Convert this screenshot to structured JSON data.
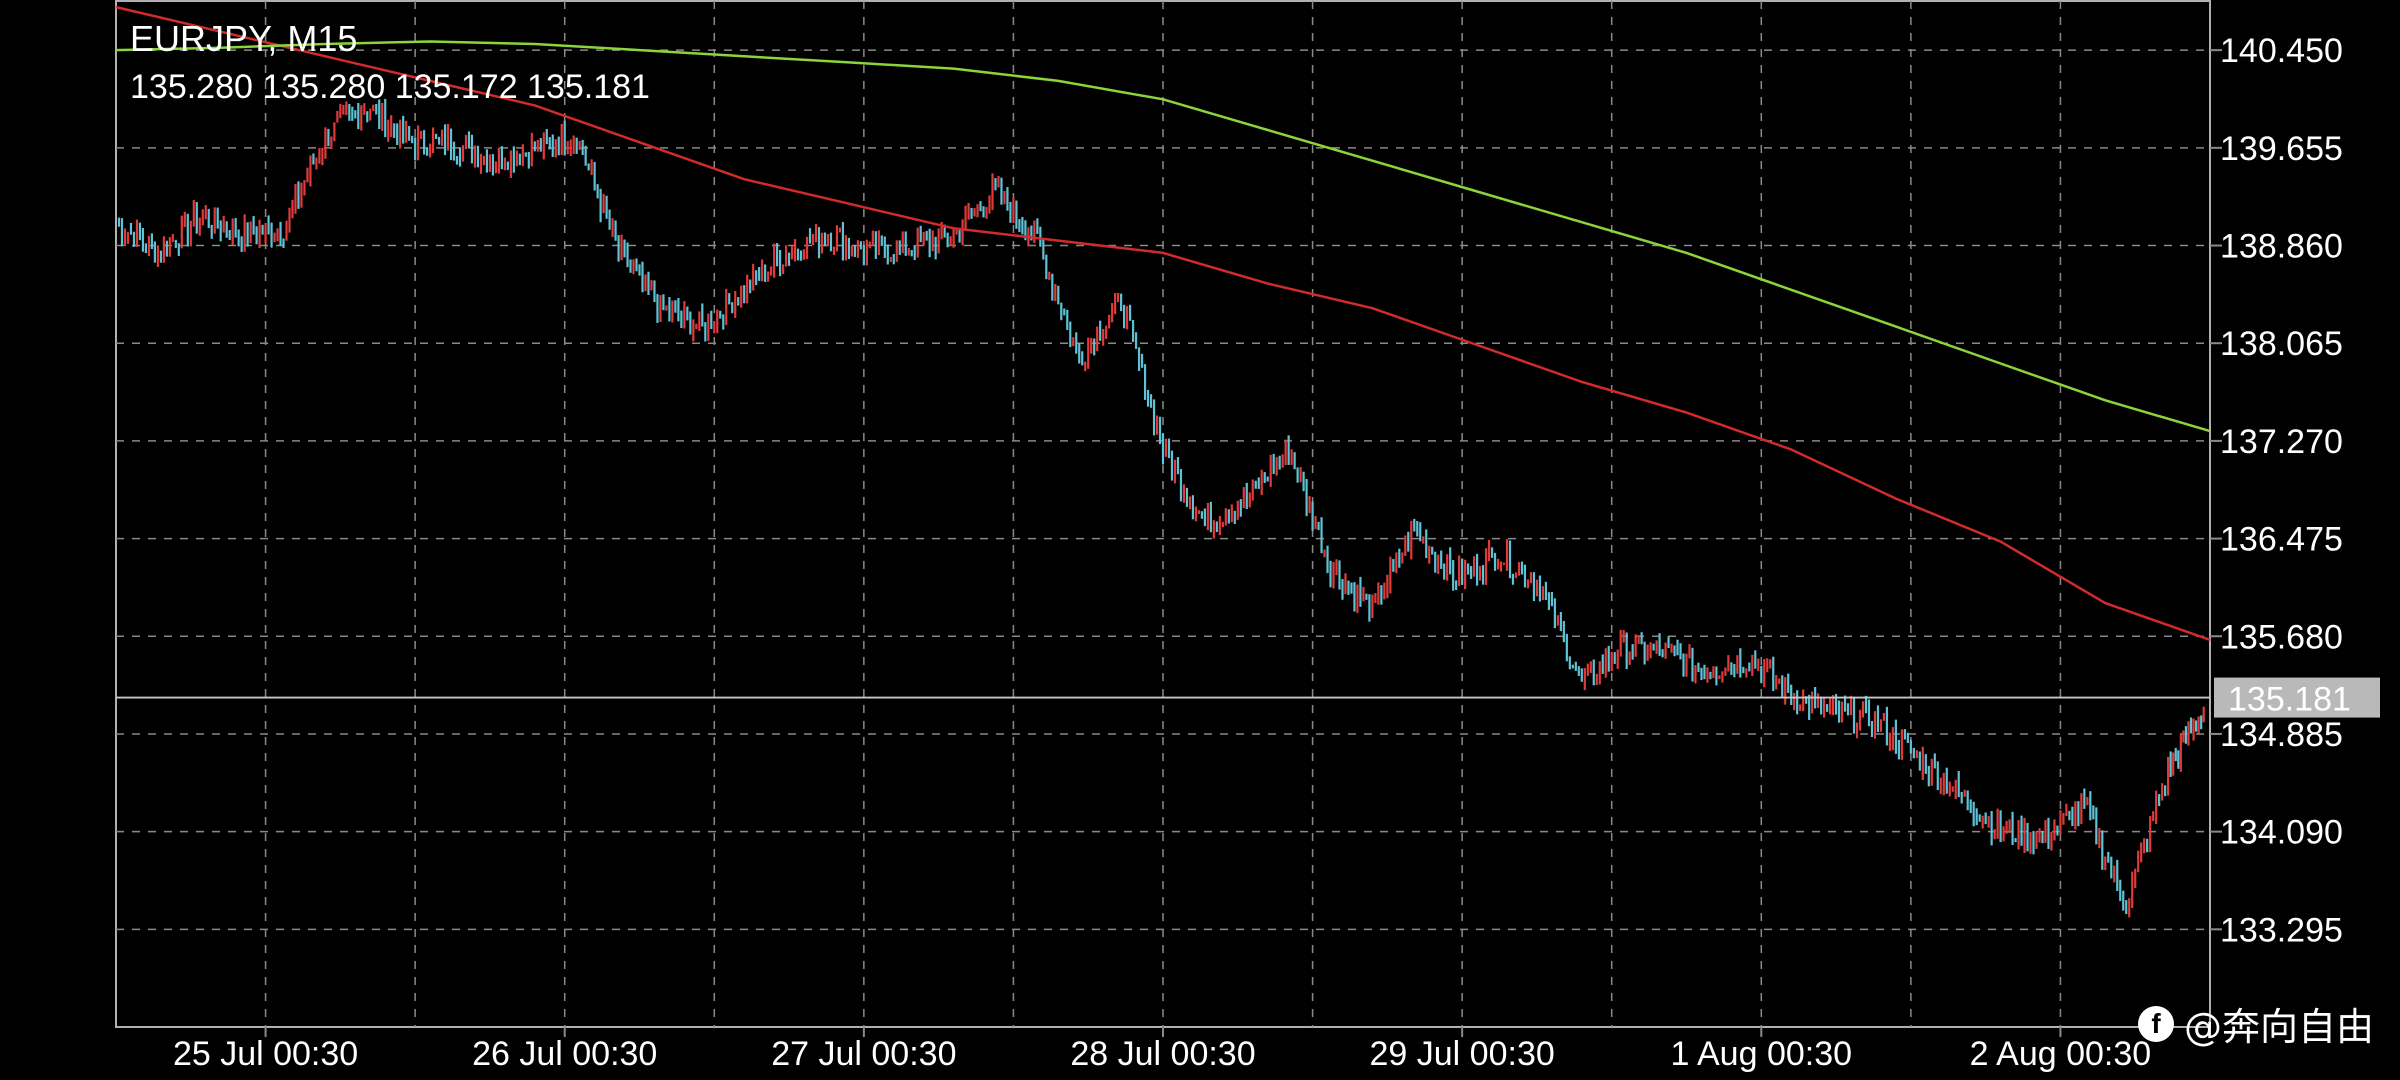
{
  "header": {
    "symbol": "EURJPY, M15",
    "ohlc": "135.280 135.280 135.172 135.181"
  },
  "watermark": {
    "icon": "facebook-icon",
    "text": "@奔向自由"
  },
  "colors": {
    "background": "#000000",
    "grid": "#8a8a8a",
    "candle_up": "#e03a3a",
    "candle_down": "#5ec3d6",
    "ma_fast": "#d22b2b",
    "ma_slow": "#8bd43a",
    "price_line": "#c8c8c8",
    "price_tag_bg": "#b9b9b9"
  },
  "chart_data": {
    "type": "line",
    "title": "EURJPY, M15",
    "x_tick_labels": [
      "25 Jul 00:30",
      "26 Jul 00:30",
      "27 Jul 00:30",
      "28 Jul 00:30",
      "29 Jul 00:30",
      "1 Aug 00:30",
      "2 Aug 00:30"
    ],
    "y_tick_labels": [
      "140.450",
      "139.655",
      "138.860",
      "138.065",
      "137.270",
      "136.475",
      "135.680",
      "134.885",
      "134.090",
      "133.295"
    ],
    "ylim": [
      132.5,
      140.85
    ],
    "current_price": 135.181,
    "current_price_label": "135.181",
    "grid": true,
    "x_index_range": [
      0,
      100
    ],
    "series": [
      {
        "kind": "price",
        "x": [
          0,
          2,
          4,
          6,
          8,
          10,
          12,
          14,
          16,
          18,
          20,
          22,
          24,
          26,
          28,
          30,
          32,
          34,
          36,
          38,
          40,
          42,
          44,
          46,
          48,
          50,
          52,
          54,
          56,
          58,
          60,
          62,
          64,
          66,
          68,
          70,
          72,
          74,
          76,
          78,
          80,
          82,
          84,
          86,
          88,
          90,
          92,
          94,
          96,
          98,
          99.7
        ],
        "values": [
          139.05,
          138.8,
          139.1,
          138.95,
          139.0,
          139.75,
          140.0,
          139.7,
          139.7,
          139.55,
          139.65,
          139.75,
          138.8,
          138.35,
          138.2,
          138.5,
          138.8,
          138.95,
          138.8,
          138.85,
          138.95,
          139.3,
          138.9,
          137.95,
          138.4,
          137.2,
          136.6,
          136.8,
          137.2,
          136.25,
          135.9,
          136.55,
          136.15,
          136.35,
          136.1,
          135.3,
          135.6,
          135.55,
          135.4,
          135.5,
          135.2,
          135.05,
          135.0,
          134.7,
          134.4,
          134.1,
          134.05,
          134.3,
          133.5,
          134.6,
          135.1
        ]
      },
      {
        "kind": "ma_fast",
        "x": [
          0,
          5,
          10,
          15,
          20,
          25,
          30,
          35,
          40,
          45,
          50,
          55,
          60,
          65,
          70,
          75,
          80,
          85,
          90,
          95,
          100
        ],
        "values": [
          140.8,
          140.6,
          140.4,
          140.2,
          140.0,
          139.7,
          139.4,
          139.2,
          139.0,
          138.9,
          138.8,
          138.55,
          138.35,
          138.05,
          137.75,
          137.5,
          137.2,
          136.8,
          136.45,
          135.95,
          135.65
        ]
      },
      {
        "kind": "ma_slow",
        "x": [
          0,
          5,
          10,
          15,
          20,
          25,
          30,
          35,
          40,
          45,
          50,
          55,
          60,
          65,
          70,
          75,
          80,
          85,
          90,
          95,
          100
        ],
        "values": [
          140.45,
          140.47,
          140.5,
          140.52,
          140.5,
          140.45,
          140.4,
          140.35,
          140.3,
          140.2,
          140.05,
          139.8,
          139.55,
          139.3,
          139.05,
          138.8,
          138.5,
          138.2,
          137.9,
          137.6,
          137.35
        ]
      }
    ]
  }
}
